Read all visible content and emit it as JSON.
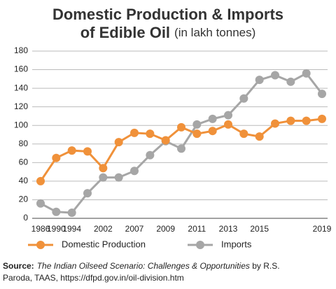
{
  "chart_data": {
    "type": "line",
    "title": "Domestic Production & Imports",
    "title_line2": "of Edible Oil",
    "title_unit": "(in lakh tonnes)",
    "categories": [
      "1986",
      "1990",
      "1994",
      null,
      "2002",
      null,
      "2007",
      null,
      "2009",
      null,
      "2011",
      null,
      "2013",
      null,
      "2015",
      null,
      null,
      null,
      "2019"
    ],
    "series": [
      {
        "name": "Domestic Production",
        "color": "#f0913a",
        "values": [
          40,
          65,
          73,
          72,
          54,
          82,
          92,
          91,
          84,
          98,
          91,
          94,
          101,
          91,
          88,
          102,
          105,
          105,
          107
        ]
      },
      {
        "name": "Imports",
        "color": "#a6a6a6",
        "values": [
          16,
          7,
          6,
          27,
          44,
          44,
          51,
          68,
          83,
          75,
          101,
          107,
          111,
          129,
          149,
          154,
          147,
          156,
          134
        ]
      }
    ],
    "ylim": [
      0,
      180
    ],
    "yticks": [
      0,
      20,
      40,
      60,
      80,
      100,
      120,
      140,
      160,
      180
    ],
    "grid": true,
    "source_label": "Source:",
    "source_title": "The Indian Oilseed Scenario: Challenges & Opportunities",
    "source_rest": " by R.S.",
    "source_line2": "Paroda, TAAS, https://dfpd.gov.in/oil-division.htm"
  }
}
